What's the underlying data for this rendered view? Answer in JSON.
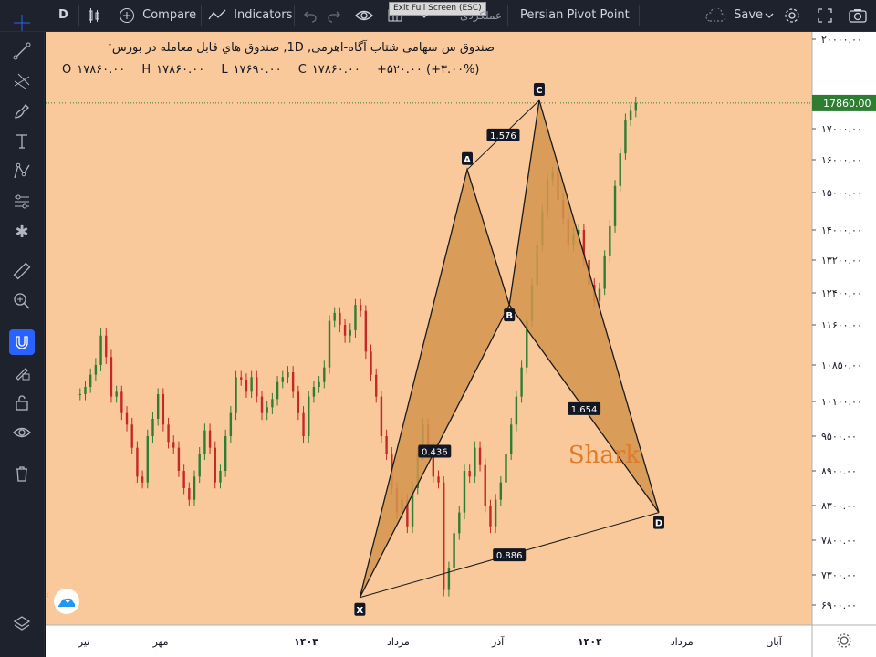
{
  "toolbar": {
    "symbol_short": "D",
    "compare_label": "Compare",
    "indicators_label": "Indicators",
    "hidden_tab": "عملکردی",
    "indicator_name": "Persian Pivot Point",
    "save_label": "Save",
    "fullscreen_tip": "Exit Full Screen (ESC)"
  },
  "legend": {
    "title": "صندوق س سهامی شتاب آگاه-اهرمی, 1D, صندوق هاي قابل معامله در بورس",
    "open_label": "O",
    "open": "۱۷۸۶۰.۰۰",
    "high_label": "H",
    "high": "۱۷۸۶۰.۰۰",
    "low_label": "L",
    "low": "۱۷۶۹۰.۰۰",
    "close_label": "C",
    "close": "۱۷۸۶۰.۰۰",
    "change": "+۵۲۰.۰۰ (+۳.۰۰%)"
  },
  "chart_data": {
    "type": "candlestick",
    "price_axis_labels": [
      "۲۰۰۰۰.۰۰",
      "۱۷۰۰۰.۰۰",
      "۱۶۰۰۰.۰۰",
      "۱۵۰۰۰.۰۰",
      "۱۴۰۰۰.۰۰",
      "۱۳۲۰۰.۰۰",
      "۱۲۴۰۰.۰۰",
      "۱۱۶۰۰.۰۰",
      "۱۰۸۵۰.۰۰",
      "۱۰۱۰۰.۰۰",
      "۹۵۰۰.۰۰",
      "۸۹۰۰.۰۰",
      "۸۳۰۰.۰۰",
      "۷۸۰۰.۰۰",
      "۷۳۰۰.۰۰",
      "۶۹۰۰.۰۰"
    ],
    "price_axis_values": [
      20000,
      17000,
      16000,
      15000,
      14000,
      13200,
      12400,
      11600,
      10850,
      10100,
      9500,
      8900,
      8300,
      7800,
      7300,
      6900
    ],
    "last_price_label": "17860.00",
    "last_price": 17860,
    "last_price_color": "#2e7d32",
    "time_axis_labels": [
      "تیر",
      "مهر",
      "۱۴۰۳",
      "مرداد",
      "آذر",
      "۱۴۰۴",
      "مرداد",
      "آبان"
    ],
    "time_axis_positions": [
      0.05,
      0.15,
      0.34,
      0.46,
      0.59,
      0.71,
      0.83,
      0.95
    ],
    "pattern": {
      "name": "Shark",
      "points": [
        {
          "label": "X",
          "price": 7000,
          "t": 0.41
        },
        {
          "label": "A",
          "price": 15700,
          "t": 0.55
        },
        {
          "label": "B",
          "price": 12100,
          "t": 0.605
        },
        {
          "label": "C",
          "price": 17950,
          "t": 0.644
        },
        {
          "label": "D",
          "price": 8200,
          "t": 0.8
        }
      ],
      "ratios": [
        {
          "label": "1.576",
          "between": "A-C"
        },
        {
          "label": "0.436",
          "between": "X-B"
        },
        {
          "label": "1.654",
          "between": "B-D"
        },
        {
          "label": "0.886",
          "between": "X-D"
        }
      ],
      "fill_color": "#d4954e",
      "text_color": "#e07b2a"
    },
    "candles": [
      10250,
      10400,
      10650,
      10850,
      11400,
      11000,
      10200,
      10300,
      9900,
      9700,
      9300,
      8800,
      8700,
      9500,
      9800,
      10250,
      9700,
      9400,
      9300,
      8900,
      8600,
      8400,
      8800,
      9200,
      9600,
      9300,
      8700,
      8900,
      9500,
      9900,
      10600,
      10550,
      10300,
      10600,
      10200,
      9900,
      10000,
      10150,
      10500,
      10600,
      10700,
      10300,
      9900,
      9500,
      10200,
      10400,
      10500,
      10800,
      11700,
      11900,
      11600,
      11400,
      11500,
      12100,
      11950,
      11100,
      10650,
      10200,
      9500,
      9200,
      8600,
      8200,
      8400,
      8000,
      8600,
      9200,
      9700,
      9300,
      8800,
      8700,
      7100,
      7400,
      7900,
      8200,
      8900,
      8800,
      9300,
      9000,
      8300,
      8000,
      8400,
      8700,
      9200,
      9700,
      10200,
      10800,
      11700,
      12600,
      13600,
      14500,
      15400,
      15600,
      14800,
      14300,
      13600,
      13900,
      14000,
      13200,
      12600,
      12200,
      12500,
      13300,
      14100,
      15200,
      16200,
      17300,
      17600,
      17860
    ],
    "ohlc_last": {
      "open": 17860,
      "high": 17860,
      "low": 17690,
      "close": 17860
    }
  },
  "colors": {
    "chart_background": "#f9c89b",
    "candle_up": "#2e7d32",
    "candle_down": "#c62828",
    "toolbar_bg": "#1e222d",
    "active_tool_bg": "#2962ff"
  }
}
